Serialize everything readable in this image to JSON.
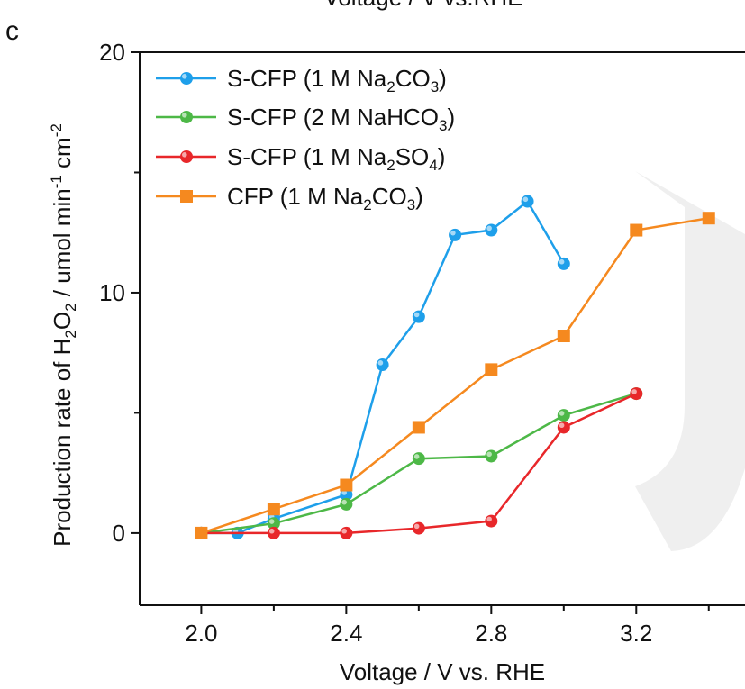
{
  "panel_label": "c",
  "top_cut_title": "Voltage / V vs.RHE",
  "chart_data": {
    "type": "line",
    "xlabel": "Voltage / V vs. RHE",
    "ylabel_parts": {
      "prefix": "Production rate of H",
      "sub1": "2",
      "mid": "O",
      "sub2": "2",
      "suffix1": " / umol min",
      "sup1": "-1",
      "suffix2": " cm",
      "sup2": "-2"
    },
    "xlim": [
      1.83,
      3.5
    ],
    "ylim": [
      -3,
      20
    ],
    "x_ticks": [
      2.0,
      2.4,
      2.8,
      3.2
    ],
    "x_tick_labels": [
      "2.0",
      "2.4",
      "2.8",
      "3.2"
    ],
    "y_ticks": [
      0,
      10,
      20
    ],
    "y_tick_labels": [
      "0",
      "10",
      "20"
    ],
    "legend_position": "top-left",
    "series": [
      {
        "name": "S-CFP (1 M Na2CO3)",
        "legend": {
          "pre": "S-CFP (1 M Na",
          "sub1": "2",
          "mid": "CO",
          "sub2": "3",
          "post": ")"
        },
        "color": "#1E9FEA",
        "marker": "circle",
        "points": [
          [
            2.0,
            0.0
          ],
          [
            2.1,
            0.0
          ],
          [
            2.2,
            0.6
          ],
          [
            2.4,
            1.6
          ],
          [
            2.5,
            7.0
          ],
          [
            2.6,
            9.0
          ],
          [
            2.7,
            12.4
          ],
          [
            2.8,
            12.6
          ],
          [
            2.9,
            13.8
          ],
          [
            3.0,
            11.2
          ]
        ]
      },
      {
        "name": "S-CFP (2 M NaHCO3)",
        "legend": {
          "pre": "S-CFP (2 M NaHCO",
          "sub1": "3",
          "mid": "",
          "sub2": "",
          "post": ")"
        },
        "color": "#4DB847",
        "marker": "circle",
        "points": [
          [
            2.0,
            0.0
          ],
          [
            2.2,
            0.4
          ],
          [
            2.4,
            1.2
          ],
          [
            2.6,
            3.1
          ],
          [
            2.8,
            3.2
          ],
          [
            3.0,
            4.9
          ],
          [
            3.2,
            5.8
          ]
        ]
      },
      {
        "name": "S-CFP (1 M Na2SO4)",
        "legend": {
          "pre": "S-CFP (1 M Na",
          "sub1": "2",
          "mid": "SO",
          "sub2": "4",
          "post": ")"
        },
        "color": "#E8272A",
        "marker": "circle",
        "points": [
          [
            2.0,
            0.0
          ],
          [
            2.2,
            0.0
          ],
          [
            2.4,
            0.0
          ],
          [
            2.6,
            0.2
          ],
          [
            2.8,
            0.5
          ],
          [
            3.0,
            4.4
          ],
          [
            3.2,
            5.8
          ]
        ]
      },
      {
        "name": "CFP (1 M Na2CO3)",
        "legend": {
          "pre": "CFP (1 M Na",
          "sub1": "2",
          "mid": "CO",
          "sub2": "3",
          "post": ")"
        },
        "color": "#F5891F",
        "marker": "square",
        "points": [
          [
            2.0,
            0.0
          ],
          [
            2.2,
            1.0
          ],
          [
            2.4,
            2.0
          ],
          [
            2.6,
            4.4
          ],
          [
            2.8,
            6.8
          ],
          [
            3.0,
            8.2
          ],
          [
            3.2,
            12.6
          ],
          [
            3.4,
            13.1
          ]
        ]
      }
    ]
  }
}
